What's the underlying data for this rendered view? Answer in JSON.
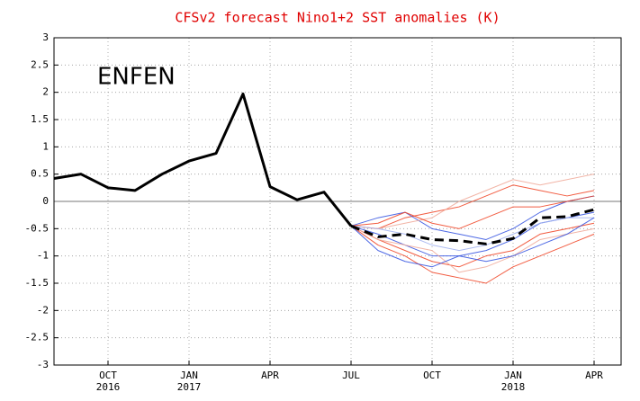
{
  "chart_data": {
    "type": "line",
    "title": "CFSv2 forecast Nino1+2 SST anomalies (K)",
    "annotation": "ENFEN",
    "xlim": [
      "2016-08",
      "2018-05"
    ],
    "xticks": [
      {
        "value": "2016-10",
        "label": "OCT",
        "year": "2016"
      },
      {
        "value": "2017-01",
        "label": "JAN",
        "year": "2017"
      },
      {
        "value": "2017-04",
        "label": "APR"
      },
      {
        "value": "2017-07",
        "label": "JUL"
      },
      {
        "value": "2017-10",
        "label": "OCT"
      },
      {
        "value": "2018-01",
        "label": "JAN",
        "year": "2018"
      },
      {
        "value": "2018-04",
        "label": "APR"
      }
    ],
    "ylim": [
      -3,
      3
    ],
    "yticks": [
      -3,
      -2.5,
      -2,
      -1.5,
      -1,
      -0.5,
      0,
      0.5,
      1,
      1.5,
      2,
      2.5,
      3
    ],
    "grid": true,
    "series": [
      {
        "role": "member",
        "color": "#f04020",
        "x": [
          "2017-07",
          "2017-08",
          "2017-09",
          "2017-10",
          "2017-11",
          "2017-12",
          "2018-01",
          "2018-02",
          "2018-03",
          "2018-04"
        ],
        "values": [
          -0.45,
          -0.5,
          -0.3,
          -0.2,
          -0.1,
          0.1,
          0.3,
          0.2,
          0.1,
          0.2
        ]
      },
      {
        "role": "member",
        "color": "#f04020",
        "x": [
          "2017-07",
          "2017-08",
          "2017-09",
          "2017-10",
          "2017-11",
          "2017-12",
          "2018-01",
          "2018-02",
          "2018-03",
          "2018-04"
        ],
        "values": [
          -0.45,
          -0.7,
          -0.9,
          -1.1,
          -1.2,
          -1.0,
          -0.9,
          -0.6,
          -0.5,
          -0.4
        ]
      },
      {
        "role": "member",
        "color": "#3050e0",
        "x": [
          "2017-07",
          "2017-08",
          "2017-09",
          "2017-10",
          "2017-11",
          "2017-12",
          "2018-01",
          "2018-02",
          "2018-03",
          "2018-04"
        ],
        "values": [
          -0.45,
          -0.6,
          -0.8,
          -1.0,
          -1.0,
          -0.9,
          -0.7,
          -0.4,
          -0.3,
          -0.2
        ]
      },
      {
        "role": "member",
        "color": "#3050e0",
        "x": [
          "2017-07",
          "2017-08",
          "2017-09",
          "2017-10",
          "2017-11",
          "2017-12",
          "2018-01",
          "2018-02",
          "2018-03",
          "2018-04"
        ],
        "values": [
          -0.45,
          -0.3,
          -0.2,
          -0.5,
          -0.6,
          -0.7,
          -0.5,
          -0.2,
          0.0,
          0.1
        ]
      },
      {
        "role": "member",
        "color": "#f04020",
        "x": [
          "2017-07",
          "2017-08",
          "2017-09",
          "2017-10",
          "2017-11",
          "2017-12",
          "2018-01",
          "2018-02",
          "2018-03",
          "2018-04"
        ],
        "values": [
          -0.45,
          -0.8,
          -1.0,
          -1.3,
          -1.4,
          -1.5,
          -1.2,
          -1.0,
          -0.8,
          -0.6
        ]
      },
      {
        "role": "member",
        "color": "#f0a898",
        "x": [
          "2017-07",
          "2017-08",
          "2017-09",
          "2017-10",
          "2017-11",
          "2017-12",
          "2018-01",
          "2018-02",
          "2018-03",
          "2018-04"
        ],
        "values": [
          -0.45,
          -0.5,
          -0.4,
          -0.3,
          0.0,
          0.2,
          0.4,
          0.3,
          0.4,
          0.5
        ]
      },
      {
        "role": "member",
        "color": "#f0a898",
        "x": [
          "2017-07",
          "2017-08",
          "2017-09",
          "2017-10",
          "2017-11",
          "2017-12",
          "2018-01",
          "2018-02",
          "2018-03",
          "2018-04"
        ],
        "values": [
          -0.45,
          -0.7,
          -0.8,
          -0.9,
          -1.3,
          -1.2,
          -1.0,
          -0.7,
          -0.6,
          -0.5
        ]
      },
      {
        "role": "member",
        "color": "#a0b0f0",
        "x": [
          "2017-07",
          "2017-08",
          "2017-09",
          "2017-10",
          "2017-11",
          "2017-12",
          "2018-01",
          "2018-02",
          "2018-03",
          "2018-04"
        ],
        "values": [
          -0.45,
          -0.5,
          -0.6,
          -0.8,
          -0.9,
          -0.8,
          -0.6,
          -0.4,
          -0.3,
          -0.3
        ]
      },
      {
        "role": "member",
        "color": "#f04020",
        "x": [
          "2017-07",
          "2017-08",
          "2017-09",
          "2017-10",
          "2017-11",
          "2017-12",
          "2018-01",
          "2018-02",
          "2018-03",
          "2018-04"
        ],
        "values": [
          -0.45,
          -0.4,
          -0.2,
          -0.4,
          -0.5,
          -0.3,
          -0.1,
          -0.1,
          0.0,
          0.1
        ]
      },
      {
        "role": "member",
        "color": "#3050e0",
        "x": [
          "2017-07",
          "2017-08",
          "2017-09",
          "2017-10",
          "2017-11",
          "2017-12",
          "2018-01",
          "2018-02",
          "2018-03",
          "2018-04"
        ],
        "values": [
          -0.45,
          -0.9,
          -1.1,
          -1.2,
          -1.0,
          -1.1,
          -1.0,
          -0.8,
          -0.6,
          -0.3
        ]
      },
      {
        "role": "observed",
        "color": "#000000",
        "x": [
          "2016-08",
          "2016-09",
          "2016-10",
          "2016-11",
          "2016-12",
          "2017-01",
          "2017-02",
          "2017-03",
          "2017-04",
          "2017-05",
          "2017-06",
          "2017-07"
        ],
        "values": [
          0.42,
          0.5,
          0.25,
          0.2,
          0.5,
          0.74,
          0.88,
          1.97,
          0.27,
          0.03,
          0.17,
          -0.45
        ]
      },
      {
        "role": "mean",
        "color": "#000000",
        "dashed": true,
        "x": [
          "2017-07",
          "2017-08",
          "2017-09",
          "2017-10",
          "2017-11",
          "2017-12",
          "2018-01",
          "2018-02",
          "2018-03",
          "2018-04"
        ],
        "values": [
          -0.45,
          -0.65,
          -0.6,
          -0.7,
          -0.72,
          -0.78,
          -0.68,
          -0.3,
          -0.28,
          -0.15
        ]
      }
    ]
  }
}
